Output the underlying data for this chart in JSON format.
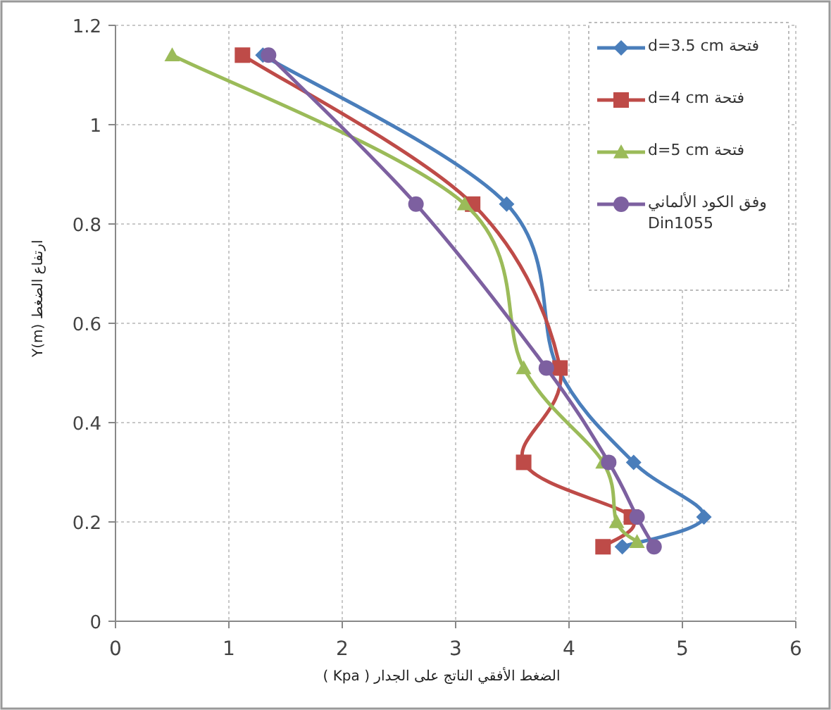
{
  "chart_data": {
    "type": "line",
    "xlabel": "الضغط الأفقي الناتج على الجدار ( Kpa )",
    "ylabel": "ارتفاع الضغط Y(m)",
    "xlim": [
      0,
      6
    ],
    "xticks": [
      0,
      1,
      2,
      3,
      4,
      5,
      6
    ],
    "ylim": [
      0,
      1.2
    ],
    "yticks": [
      0,
      0.2,
      0.4,
      0.6,
      0.8,
      1,
      1.2
    ],
    "grid": true,
    "legend": "top right",
    "series": [
      {
        "name": "فتحة d=3.5 cm",
        "color": "#4a7ebb",
        "marker": "diamond",
        "x": [
          1.3,
          3.45,
          3.9,
          4.57,
          5.19,
          4.47
        ],
        "values": [
          1.14,
          0.84,
          0.51,
          0.32,
          0.21,
          0.15
        ]
      },
      {
        "name": "فتحة d=4 cm",
        "color": "#be4b48",
        "marker": "square",
        "x": [
          1.12,
          3.15,
          3.92,
          3.6,
          4.55,
          4.3
        ],
        "values": [
          1.14,
          0.84,
          0.51,
          0.32,
          0.21,
          0.15
        ]
      },
      {
        "name": "فتحة d=5 cm",
        "color": "#9bbb59",
        "marker": "triangle",
        "x": [
          0.5,
          3.08,
          3.6,
          4.3,
          4.42,
          4.6
        ],
        "values": [
          1.14,
          0.84,
          0.51,
          0.32,
          0.2,
          0.16
        ]
      },
      {
        "name": "وفق الكود الألماني Din1055",
        "color": "#7d60a0",
        "marker": "circle",
        "x": [
          1.35,
          2.65,
          3.8,
          4.35,
          4.6,
          4.75
        ],
        "values": [
          1.14,
          0.84,
          0.51,
          0.32,
          0.21,
          0.15
        ]
      }
    ]
  }
}
